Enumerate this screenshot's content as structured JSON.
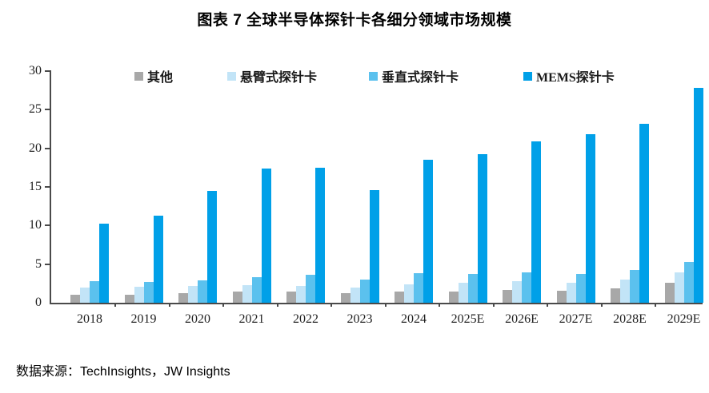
{
  "title": "图表 7 全球半导体探针卡各细分领域市场规模",
  "source_note": "数据来源：TechInsights，JW Insights",
  "colors": {
    "other": "#A8A8A8",
    "cantilever": "#C2E4F7",
    "vertical": "#5BC1EE",
    "mems": "#00A0E8",
    "axis": "#4a4a4a",
    "text": "#1f1f1f"
  },
  "chart_data": {
    "type": "bar",
    "title": "图表 7 全球半导体探针卡各细分领域市场规模",
    "categories": [
      "2018",
      "2019",
      "2020",
      "2021",
      "2022",
      "2023",
      "2024",
      "2025E",
      "2026E",
      "2027E",
      "2028E",
      "2029E"
    ],
    "series": [
      {
        "name": "其他",
        "color": "#A8A8A8",
        "values": [
          1.0,
          1.0,
          1.2,
          1.4,
          1.4,
          1.2,
          1.5,
          1.5,
          1.7,
          1.6,
          1.9,
          2.6
        ]
      },
      {
        "name": "悬臂式探针卡",
        "color": "#C2E4F7",
        "values": [
          2.0,
          2.1,
          2.2,
          2.3,
          2.2,
          2.0,
          2.4,
          2.6,
          2.8,
          2.6,
          3.0,
          3.9
        ]
      },
      {
        "name": "垂直式探针卡",
        "color": "#5BC1EE",
        "values": [
          2.8,
          2.7,
          2.9,
          3.3,
          3.6,
          3.0,
          3.8,
          3.7,
          3.9,
          3.7,
          4.2,
          5.3
        ]
      },
      {
        "name": "MEMS探针卡",
        "color": "#00A0E8",
        "values": [
          10.2,
          11.3,
          14.5,
          17.4,
          17.5,
          14.6,
          18.5,
          19.2,
          20.9,
          21.8,
          23.2,
          27.8
        ]
      }
    ],
    "xlabel": "",
    "ylabel": "",
    "ylim": [
      0,
      30
    ],
    "yticks": [
      0,
      5,
      10,
      15,
      20,
      25,
      30
    ],
    "grid": false,
    "legend_position": "top-inside"
  }
}
